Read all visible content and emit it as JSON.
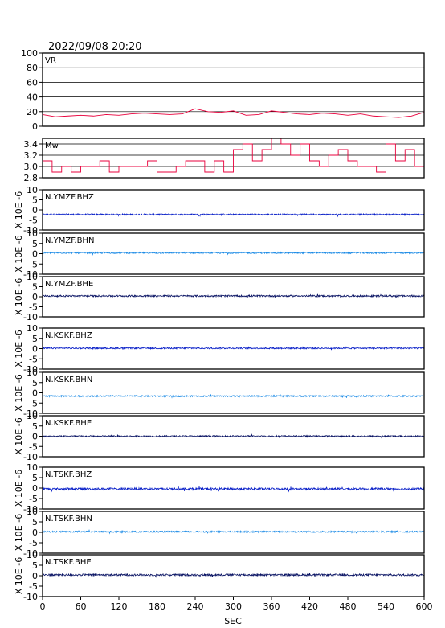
{
  "title": "2022/09/08 20:20",
  "xlabel": "SEC",
  "ylabel": "X 10E -6",
  "x_ticks": [
    0,
    60,
    120,
    180,
    240,
    300,
    360,
    420,
    480,
    540,
    600
  ],
  "chart_data": [
    {
      "type": "line",
      "label": "VR",
      "xlim": [
        0,
        600
      ],
      "ylim": [
        0,
        100
      ],
      "y_ticks": [
        0,
        20,
        40,
        60,
        80,
        100
      ],
      "grid": true,
      "color": "#e8003c",
      "x": [
        0,
        20,
        40,
        60,
        80,
        100,
        120,
        140,
        160,
        180,
        200,
        220,
        240,
        260,
        280,
        300,
        320,
        340,
        360,
        380,
        400,
        420,
        440,
        460,
        480,
        500,
        520,
        540,
        560,
        580,
        600
      ],
      "values": [
        16,
        13,
        14,
        15,
        14,
        16,
        15,
        17,
        18,
        17,
        16,
        17,
        24,
        20,
        19,
        21,
        15,
        16,
        21,
        19,
        17,
        16,
        18,
        17,
        15,
        17,
        14,
        13,
        12,
        14,
        19
      ]
    },
    {
      "type": "line",
      "label": "Mw",
      "xlim": [
        0,
        600
      ],
      "ylim": [
        2.8,
        3.5
      ],
      "y_ticks": [
        2.8,
        3.0,
        3.2,
        3.4
      ],
      "grid": true,
      "color": "#e8003c",
      "step": true,
      "x": [
        0,
        15,
        30,
        45,
        60,
        75,
        90,
        105,
        120,
        135,
        150,
        165,
        180,
        195,
        210,
        225,
        240,
        255,
        270,
        285,
        300,
        315,
        330,
        345,
        360,
        375,
        390,
        405,
        420,
        435,
        450,
        465,
        480,
        495,
        510,
        525,
        540,
        555,
        570,
        585,
        600
      ],
      "values": [
        3.1,
        2.9,
        3.0,
        2.9,
        3.0,
        3.0,
        3.1,
        2.9,
        3.0,
        3.0,
        3.0,
        3.1,
        2.9,
        2.9,
        3.0,
        3.1,
        3.1,
        2.9,
        3.1,
        2.9,
        3.3,
        3.4,
        3.1,
        3.3,
        3.5,
        3.4,
        3.2,
        3.4,
        3.1,
        3.0,
        3.2,
        3.3,
        3.1,
        3.0,
        3.0,
        2.9,
        3.4,
        3.1,
        3.3,
        3.0,
        3.0
      ]
    },
    {
      "type": "line",
      "label": "N.YMZF.BHZ",
      "color": "#0a20c8",
      "ylim": [
        -10,
        10
      ],
      "y_ticks": [
        -10,
        -5,
        0,
        5,
        10
      ],
      "baseline": -2.3,
      "noise": 0.35
    },
    {
      "type": "line",
      "label": "N.YMZF.BHN",
      "color": "#1e8ce6",
      "ylim": [
        -10,
        10
      ],
      "y_ticks": [
        -10,
        -5,
        0,
        5,
        10
      ],
      "baseline": 0.4,
      "noise": 0.35
    },
    {
      "type": "line",
      "label": "N.YMZF.BHE",
      "color": "#0a1464",
      "ylim": [
        -10,
        10
      ],
      "y_ticks": [
        -10,
        -5,
        0,
        5,
        10
      ],
      "baseline": 0.4,
      "noise": 0.4
    },
    {
      "type": "line",
      "label": "N.KSKF.BHZ",
      "color": "#0a20c8",
      "ylim": [
        -10,
        10
      ],
      "y_ticks": [
        -10,
        -5,
        0,
        5,
        10
      ],
      "baseline": 0.2,
      "noise": 0.35
    },
    {
      "type": "line",
      "label": "N.KSKF.BHN",
      "color": "#1e8ce6",
      "ylim": [
        -10,
        10
      ],
      "y_ticks": [
        -10,
        -5,
        0,
        5,
        10
      ],
      "baseline": -1.6,
      "noise": 0.35
    },
    {
      "type": "line",
      "label": "N.KSKF.BHE",
      "color": "#0a1464",
      "ylim": [
        -10,
        10
      ],
      "y_ticks": [
        -10,
        -5,
        0,
        5,
        10
      ],
      "baseline": 0.0,
      "noise": 0.35
    },
    {
      "type": "line",
      "label": "N.TSKF.BHZ",
      "color": "#0a20c8",
      "ylim": [
        -10,
        10
      ],
      "y_ticks": [
        -10,
        -5,
        0,
        5,
        10
      ],
      "baseline": -0.4,
      "noise": 0.5
    },
    {
      "type": "line",
      "label": "N.TSKF.BHN",
      "color": "#1e8ce6",
      "ylim": [
        -10,
        10
      ],
      "y_ticks": [
        -10,
        -5,
        0,
        5,
        10
      ],
      "baseline": 0.3,
      "noise": 0.35
    },
    {
      "type": "line",
      "label": "N.TSKF.BHE",
      "color": "#0a1464",
      "ylim": [
        -10,
        10
      ],
      "y_ticks": [
        -10,
        -5,
        0,
        5,
        10
      ],
      "baseline": 0.4,
      "noise": 0.45
    }
  ]
}
